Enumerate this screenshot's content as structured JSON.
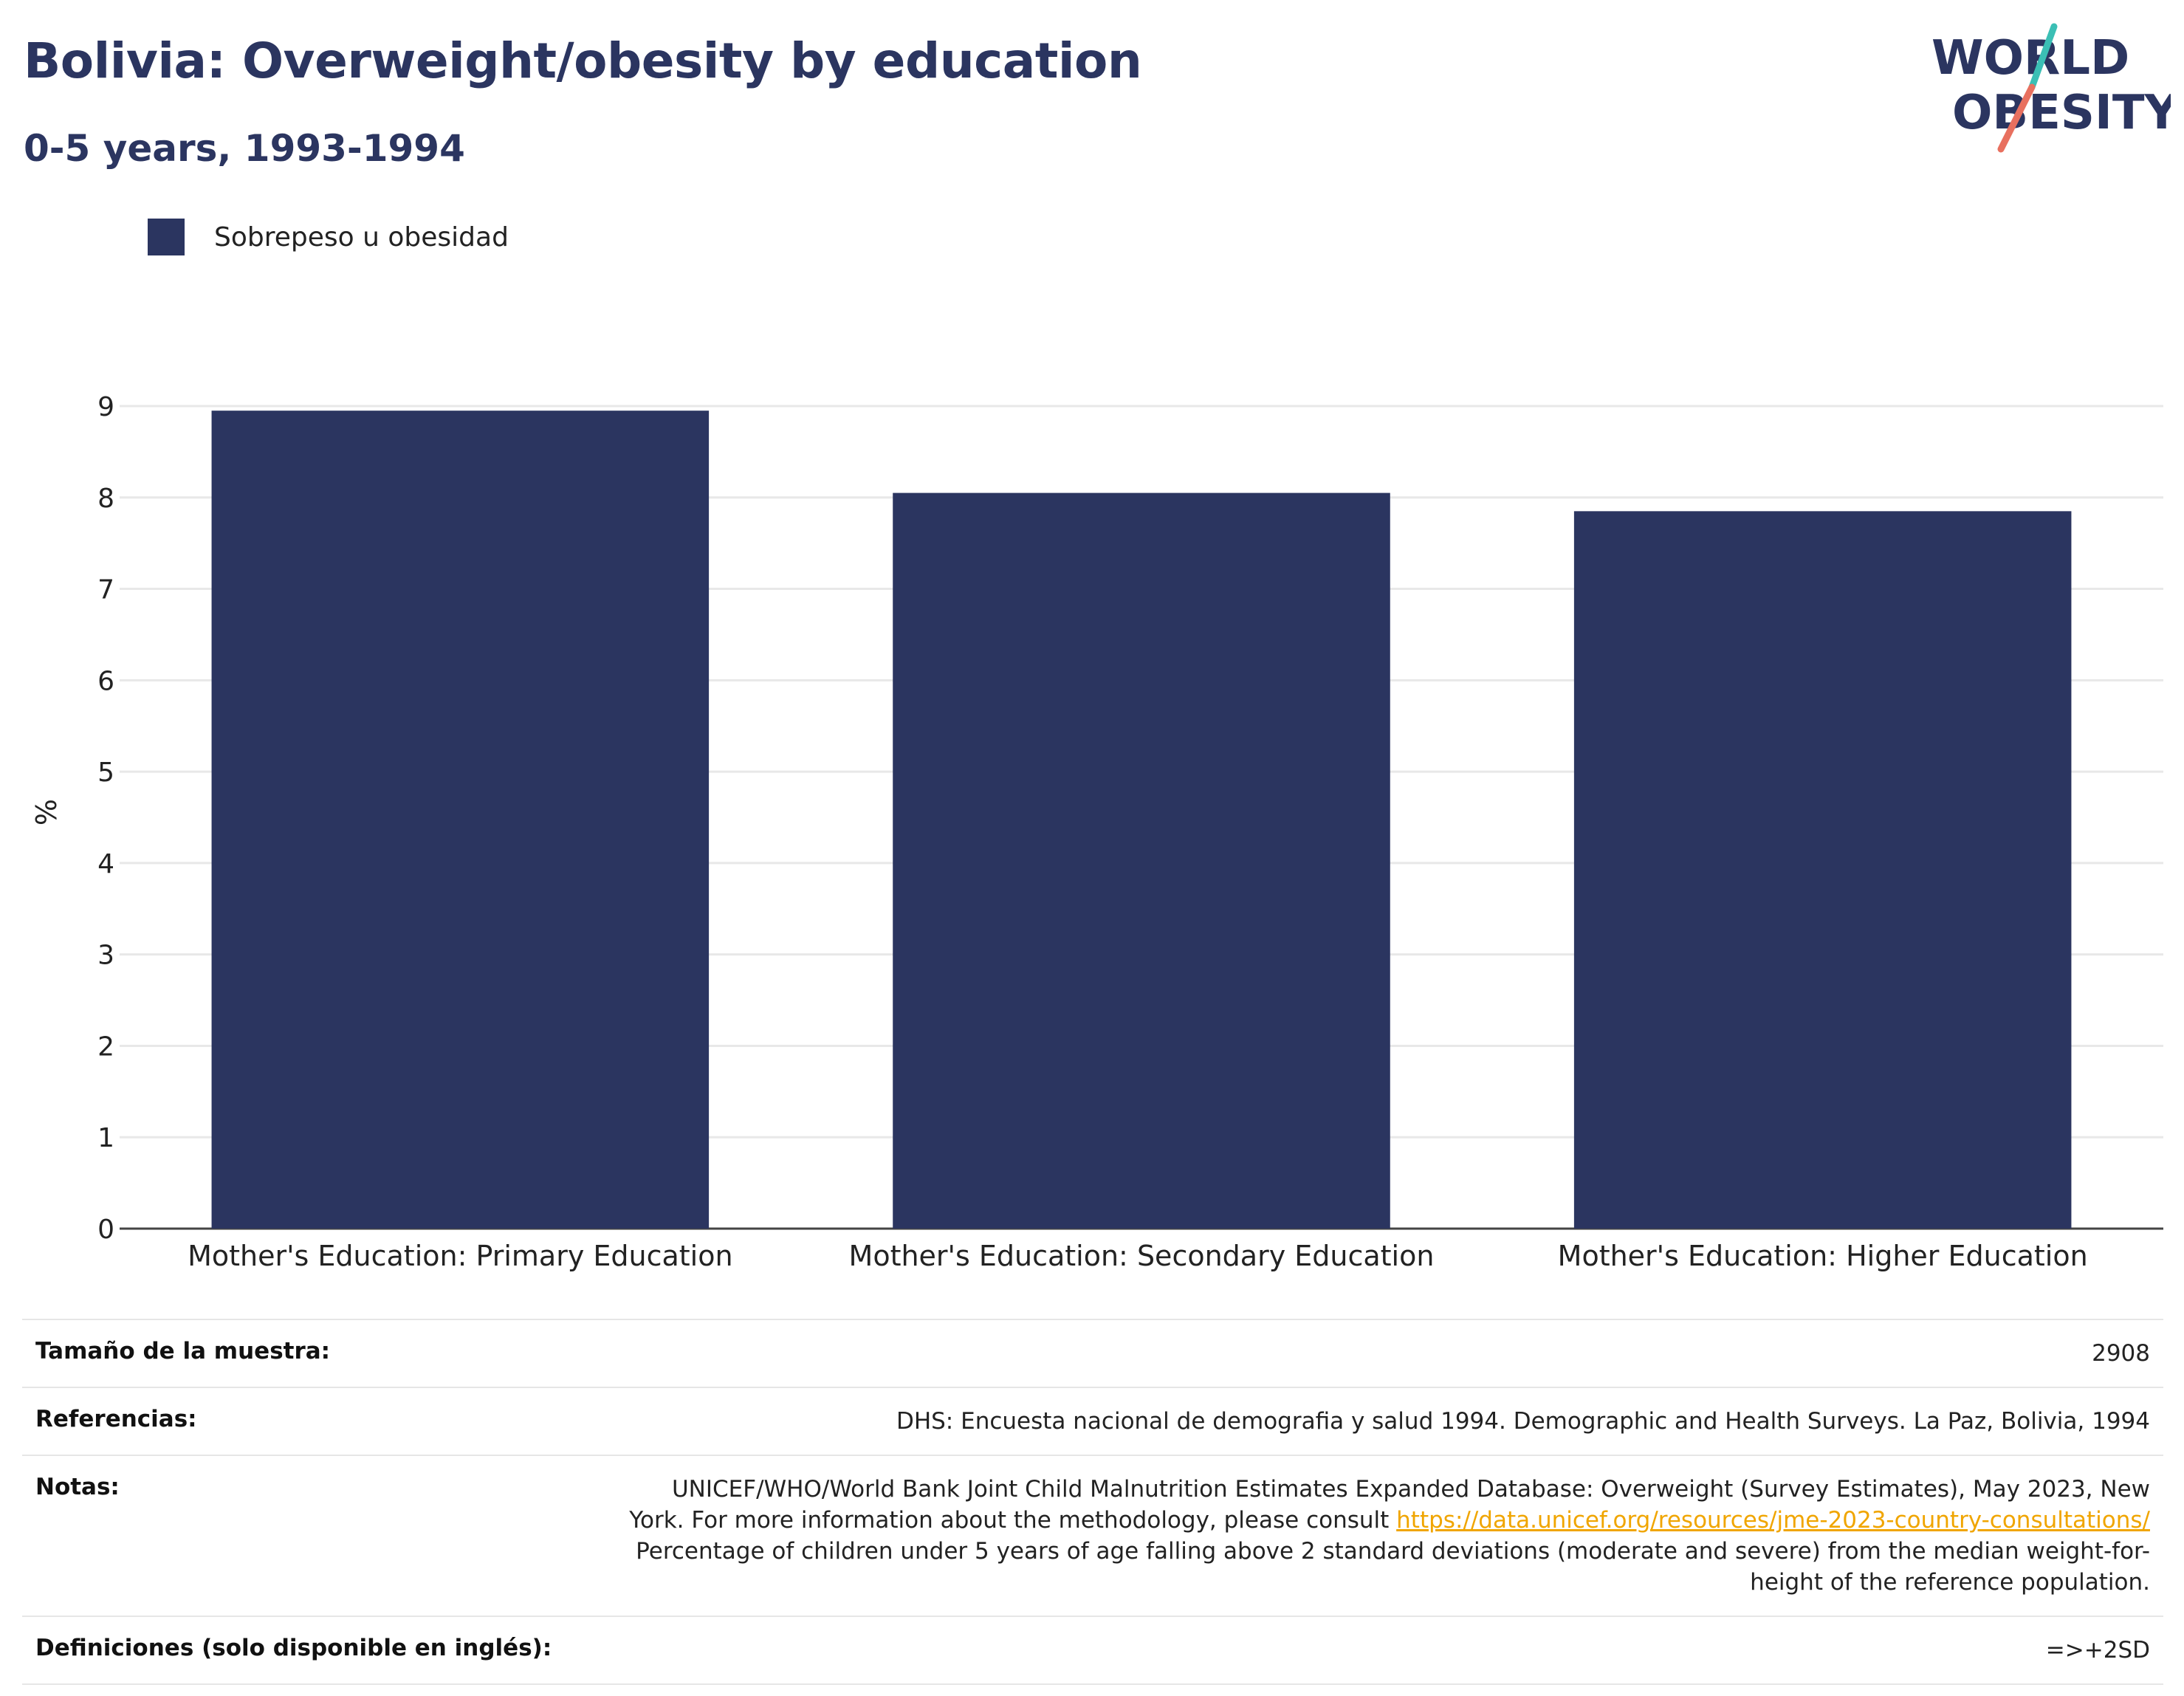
{
  "header": {
    "title": "Bolivia: Overweight/obesity by education",
    "subtitle": "0-5 years, 1993-1994"
  },
  "logo": {
    "line1": "WORLD",
    "line2": "OBESITY",
    "colors": {
      "text": "#2b3560",
      "teal": "#3bbfb5",
      "coral": "#e8705f"
    }
  },
  "legend": {
    "label": "Sobrepeso u obesidad"
  },
  "chart_data": {
    "type": "bar",
    "categories": [
      "Mother's Education: Primary Education",
      "Mother's Education: Secondary Education",
      "Mother's Education: Higher Education"
    ],
    "series": [
      {
        "name": "Sobrepeso u obesidad",
        "values": [
          8.95,
          8.05,
          7.85
        ],
        "color": "#2b3560"
      }
    ],
    "ylabel": "%",
    "xlabel": "",
    "ylim": [
      0,
      9
    ],
    "yticks": [
      0,
      1,
      2,
      3,
      4,
      5,
      6,
      7,
      8,
      9
    ],
    "grid": true,
    "legend_position": "top-left"
  },
  "info": {
    "sample_label": "Tamaño de la muestra:",
    "sample_value": "2908",
    "references_label": "Referencias:",
    "references_value": "DHS: Encuesta nacional de demografia y salud 1994. Demographic and Health Surveys. La Paz, Bolivia, 1994",
    "notes_label": "Notas:",
    "notes_line1": "UNICEF/WHO/World Bank Joint Child Malnutrition Estimates Expanded Database: Overweight (Survey Estimates), May 2023, New",
    "notes_line2_prefix": "York. For more information about the methodology, please consult ",
    "notes_link": "https://data.unicef.org/resources/jme-2023-country-consultations/",
    "notes_line3": "Percentage of children under 5 years of age falling above 2 standard deviations (moderate and severe) from the median weight-for-",
    "notes_line4": "height of the reference population.",
    "definitions_label": "Definiciones (solo disponible en inglés):",
    "definitions_value": "=>+2SD"
  }
}
